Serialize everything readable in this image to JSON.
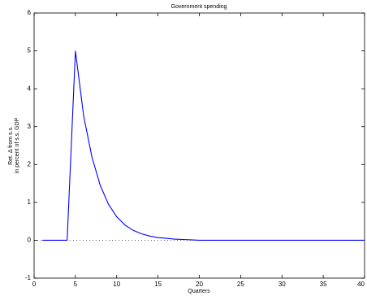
{
  "chart_data": {
    "type": "line",
    "title": "Government spending",
    "xlabel": "Quarters",
    "ylabel": [
      "Ret. Δ from s.s.",
      "in percent of s.s. GDP"
    ],
    "x": [
      1,
      2,
      3,
      4,
      5,
      6,
      7,
      8,
      9,
      10,
      11,
      12,
      13,
      14,
      15,
      16,
      17,
      18,
      19,
      20,
      21,
      22,
      23,
      24,
      25,
      26,
      27,
      28,
      29,
      30,
      31,
      32,
      33,
      34,
      35,
      36,
      37,
      38,
      39,
      40
    ],
    "series": [
      {
        "color": "#0000ff",
        "values": [
          0,
          0,
          0,
          0,
          5,
          3.28,
          2.2,
          1.45,
          0.95,
          0.62,
          0.4,
          0.26,
          0.17,
          0.11,
          0.07,
          0.05,
          0.03,
          0.02,
          0.01,
          0,
          0,
          0,
          0,
          0,
          0,
          0,
          0,
          0,
          0,
          0,
          0,
          0,
          0,
          0,
          0,
          0,
          0,
          0,
          0,
          0
        ]
      }
    ],
    "xlim": [
      0,
      40
    ],
    "xticks": [
      0,
      5,
      10,
      15,
      20,
      25,
      30,
      35,
      40
    ],
    "ylim": [
      -1,
      6
    ],
    "yticks": [
      -1,
      0,
      1,
      2,
      3,
      4,
      5,
      6
    ],
    "zero_line": true,
    "box": true
  }
}
